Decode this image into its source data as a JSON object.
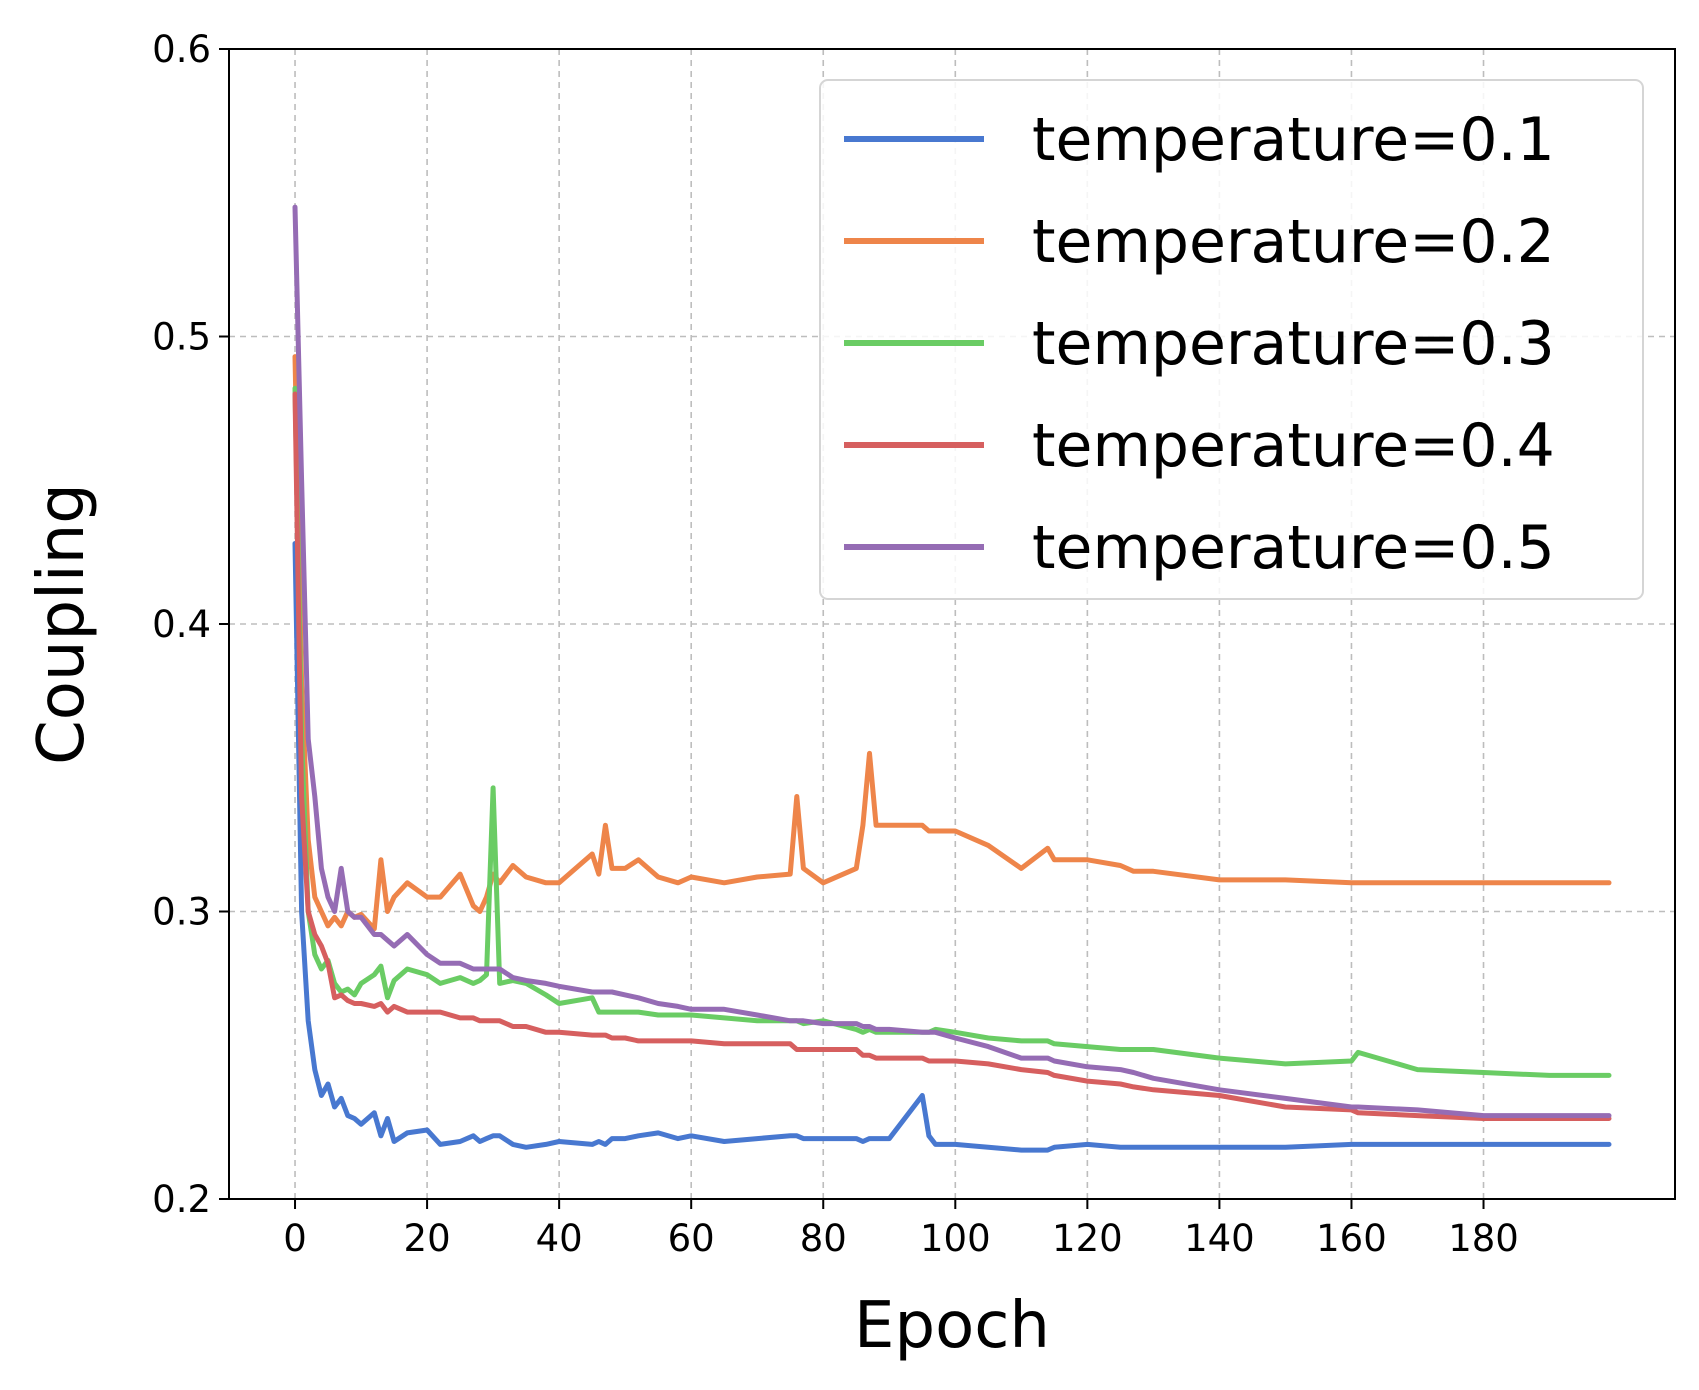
{
  "chart_data": {
    "type": "line",
    "title": "",
    "xlabel": "Epoch",
    "ylabel": "Coupling",
    "xlim": [
      -10,
      209
    ],
    "ylim": [
      0.2,
      0.6
    ],
    "xticks": [
      0,
      20,
      40,
      60,
      80,
      100,
      120,
      140,
      160,
      180
    ],
    "yticks": [
      0.2,
      0.3,
      0.4,
      0.5,
      0.6
    ],
    "xtick_labels": [
      "0",
      "20",
      "40",
      "60",
      "80",
      "100",
      "120",
      "140",
      "160",
      "180"
    ],
    "ytick_labels": [
      "0.2",
      "0.3",
      "0.4",
      "0.5",
      "0.6"
    ],
    "grid": true,
    "legend_position": "top-right",
    "x": [
      0,
      1,
      2,
      3,
      4,
      5,
      6,
      7,
      8,
      9,
      10,
      12,
      13,
      14,
      15,
      17,
      20,
      22,
      25,
      27,
      28,
      29,
      30,
      31,
      33,
      35,
      38,
      40,
      45,
      46,
      47,
      48,
      50,
      52,
      55,
      58,
      60,
      65,
      70,
      75,
      76,
      77,
      80,
      85,
      86,
      87,
      88,
      90,
      95,
      96,
      97,
      100,
      105,
      110,
      114,
      115,
      120,
      125,
      127,
      130,
      140,
      150,
      160,
      161,
      170,
      180,
      190,
      199
    ],
    "series": [
      {
        "name": "temperature=0.1",
        "color": "#4878d0",
        "values": [
          0.428,
          0.3,
          0.262,
          0.245,
          0.236,
          0.24,
          0.232,
          0.235,
          0.229,
          0.228,
          0.226,
          0.23,
          0.222,
          0.228,
          0.22,
          0.223,
          0.224,
          0.219,
          0.22,
          0.222,
          0.22,
          0.221,
          0.222,
          0.222,
          0.219,
          0.218,
          0.219,
          0.22,
          0.219,
          0.22,
          0.219,
          0.221,
          0.221,
          0.222,
          0.223,
          0.221,
          0.222,
          0.22,
          0.221,
          0.222,
          0.222,
          0.221,
          0.221,
          0.221,
          0.22,
          0.221,
          0.221,
          0.221,
          0.236,
          0.222,
          0.219,
          0.219,
          0.218,
          0.217,
          0.217,
          0.218,
          0.219,
          0.218,
          0.218,
          0.218,
          0.218,
          0.218,
          0.219,
          0.219,
          0.219,
          0.219,
          0.219,
          0.219
        ]
      },
      {
        "name": "temperature=0.2",
        "color": "#ee854a",
        "values": [
          0.493,
          0.38,
          0.325,
          0.305,
          0.3,
          0.295,
          0.298,
          0.295,
          0.3,
          0.298,
          0.299,
          0.294,
          0.318,
          0.3,
          0.305,
          0.31,
          0.305,
          0.305,
          0.313,
          0.302,
          0.3,
          0.305,
          0.313,
          0.31,
          0.316,
          0.312,
          0.31,
          0.31,
          0.32,
          0.313,
          0.33,
          0.315,
          0.315,
          0.318,
          0.312,
          0.31,
          0.312,
          0.31,
          0.312,
          0.313,
          0.34,
          0.315,
          0.31,
          0.315,
          0.33,
          0.355,
          0.33,
          0.33,
          0.33,
          0.328,
          0.328,
          0.328,
          0.323,
          0.315,
          0.322,
          0.318,
          0.318,
          0.316,
          0.314,
          0.314,
          0.311,
          0.311,
          0.31,
          0.31,
          0.31,
          0.31,
          0.31,
          0.31
        ]
      },
      {
        "name": "temperature=0.3",
        "color": "#6acc64",
        "values": [
          0.482,
          0.36,
          0.3,
          0.285,
          0.28,
          0.283,
          0.275,
          0.272,
          0.273,
          0.271,
          0.275,
          0.278,
          0.281,
          0.27,
          0.276,
          0.28,
          0.278,
          0.275,
          0.277,
          0.275,
          0.276,
          0.278,
          0.343,
          0.275,
          0.276,
          0.275,
          0.271,
          0.268,
          0.27,
          0.265,
          0.265,
          0.265,
          0.265,
          0.265,
          0.264,
          0.264,
          0.264,
          0.263,
          0.262,
          0.262,
          0.262,
          0.261,
          0.262,
          0.259,
          0.258,
          0.259,
          0.258,
          0.258,
          0.258,
          0.258,
          0.259,
          0.258,
          0.256,
          0.255,
          0.255,
          0.254,
          0.253,
          0.252,
          0.252,
          0.252,
          0.249,
          0.247,
          0.248,
          0.251,
          0.245,
          0.244,
          0.243,
          0.243
        ]
      },
      {
        "name": "temperature=0.4",
        "color": "#d65f5f",
        "values": [
          0.48,
          0.34,
          0.3,
          0.292,
          0.288,
          0.282,
          0.27,
          0.271,
          0.269,
          0.268,
          0.268,
          0.267,
          0.268,
          0.265,
          0.267,
          0.265,
          0.265,
          0.265,
          0.263,
          0.263,
          0.262,
          0.262,
          0.262,
          0.262,
          0.26,
          0.26,
          0.258,
          0.258,
          0.257,
          0.257,
          0.257,
          0.256,
          0.256,
          0.255,
          0.255,
          0.255,
          0.255,
          0.254,
          0.254,
          0.254,
          0.252,
          0.252,
          0.252,
          0.252,
          0.25,
          0.25,
          0.249,
          0.249,
          0.249,
          0.248,
          0.248,
          0.248,
          0.247,
          0.245,
          0.244,
          0.243,
          0.241,
          0.24,
          0.239,
          0.238,
          0.236,
          0.232,
          0.231,
          0.23,
          0.229,
          0.228,
          0.228,
          0.228
        ]
      },
      {
        "name": "temperature=0.5",
        "color": "#956cb4",
        "values": [
          0.545,
          0.45,
          0.36,
          0.34,
          0.315,
          0.305,
          0.3,
          0.315,
          0.3,
          0.298,
          0.298,
          0.292,
          0.292,
          0.29,
          0.288,
          0.292,
          0.285,
          0.282,
          0.282,
          0.28,
          0.28,
          0.28,
          0.28,
          0.28,
          0.277,
          0.276,
          0.275,
          0.274,
          0.272,
          0.272,
          0.272,
          0.272,
          0.271,
          0.27,
          0.268,
          0.267,
          0.266,
          0.266,
          0.264,
          0.262,
          0.262,
          0.262,
          0.261,
          0.261,
          0.26,
          0.26,
          0.259,
          0.259,
          0.258,
          0.258,
          0.258,
          0.256,
          0.253,
          0.249,
          0.249,
          0.248,
          0.246,
          0.245,
          0.244,
          0.242,
          0.238,
          0.235,
          0.232,
          0.232,
          0.231,
          0.229,
          0.229,
          0.229
        ]
      }
    ]
  }
}
